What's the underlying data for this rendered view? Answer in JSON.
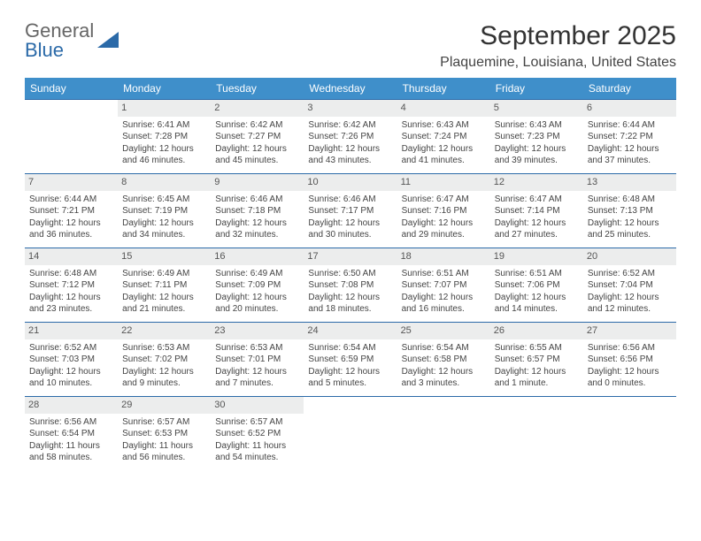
{
  "brand": {
    "part1": "General",
    "part2": "Blue"
  },
  "title": {
    "month": "September 2025",
    "location": "Plaquemine, Louisiana, United States"
  },
  "colors": {
    "header_bg": "#3f8fca",
    "row_border": "#2b6aa8",
    "daynum_bg": "#eceded",
    "text": "#444444",
    "brand_blue": "#2b6aa8"
  },
  "dayHeaders": [
    "Sunday",
    "Monday",
    "Tuesday",
    "Wednesday",
    "Thursday",
    "Friday",
    "Saturday"
  ],
  "weeks": [
    [
      null,
      {
        "n": "1",
        "sr": "Sunrise: 6:41 AM",
        "ss": "Sunset: 7:28 PM",
        "dl": "Daylight: 12 hours and 46 minutes."
      },
      {
        "n": "2",
        "sr": "Sunrise: 6:42 AM",
        "ss": "Sunset: 7:27 PM",
        "dl": "Daylight: 12 hours and 45 minutes."
      },
      {
        "n": "3",
        "sr": "Sunrise: 6:42 AM",
        "ss": "Sunset: 7:26 PM",
        "dl": "Daylight: 12 hours and 43 minutes."
      },
      {
        "n": "4",
        "sr": "Sunrise: 6:43 AM",
        "ss": "Sunset: 7:24 PM",
        "dl": "Daylight: 12 hours and 41 minutes."
      },
      {
        "n": "5",
        "sr": "Sunrise: 6:43 AM",
        "ss": "Sunset: 7:23 PM",
        "dl": "Daylight: 12 hours and 39 minutes."
      },
      {
        "n": "6",
        "sr": "Sunrise: 6:44 AM",
        "ss": "Sunset: 7:22 PM",
        "dl": "Daylight: 12 hours and 37 minutes."
      }
    ],
    [
      {
        "n": "7",
        "sr": "Sunrise: 6:44 AM",
        "ss": "Sunset: 7:21 PM",
        "dl": "Daylight: 12 hours and 36 minutes."
      },
      {
        "n": "8",
        "sr": "Sunrise: 6:45 AM",
        "ss": "Sunset: 7:19 PM",
        "dl": "Daylight: 12 hours and 34 minutes."
      },
      {
        "n": "9",
        "sr": "Sunrise: 6:46 AM",
        "ss": "Sunset: 7:18 PM",
        "dl": "Daylight: 12 hours and 32 minutes."
      },
      {
        "n": "10",
        "sr": "Sunrise: 6:46 AM",
        "ss": "Sunset: 7:17 PM",
        "dl": "Daylight: 12 hours and 30 minutes."
      },
      {
        "n": "11",
        "sr": "Sunrise: 6:47 AM",
        "ss": "Sunset: 7:16 PM",
        "dl": "Daylight: 12 hours and 29 minutes."
      },
      {
        "n": "12",
        "sr": "Sunrise: 6:47 AM",
        "ss": "Sunset: 7:14 PM",
        "dl": "Daylight: 12 hours and 27 minutes."
      },
      {
        "n": "13",
        "sr": "Sunrise: 6:48 AM",
        "ss": "Sunset: 7:13 PM",
        "dl": "Daylight: 12 hours and 25 minutes."
      }
    ],
    [
      {
        "n": "14",
        "sr": "Sunrise: 6:48 AM",
        "ss": "Sunset: 7:12 PM",
        "dl": "Daylight: 12 hours and 23 minutes."
      },
      {
        "n": "15",
        "sr": "Sunrise: 6:49 AM",
        "ss": "Sunset: 7:11 PM",
        "dl": "Daylight: 12 hours and 21 minutes."
      },
      {
        "n": "16",
        "sr": "Sunrise: 6:49 AM",
        "ss": "Sunset: 7:09 PM",
        "dl": "Daylight: 12 hours and 20 minutes."
      },
      {
        "n": "17",
        "sr": "Sunrise: 6:50 AM",
        "ss": "Sunset: 7:08 PM",
        "dl": "Daylight: 12 hours and 18 minutes."
      },
      {
        "n": "18",
        "sr": "Sunrise: 6:51 AM",
        "ss": "Sunset: 7:07 PM",
        "dl": "Daylight: 12 hours and 16 minutes."
      },
      {
        "n": "19",
        "sr": "Sunrise: 6:51 AM",
        "ss": "Sunset: 7:06 PM",
        "dl": "Daylight: 12 hours and 14 minutes."
      },
      {
        "n": "20",
        "sr": "Sunrise: 6:52 AM",
        "ss": "Sunset: 7:04 PM",
        "dl": "Daylight: 12 hours and 12 minutes."
      }
    ],
    [
      {
        "n": "21",
        "sr": "Sunrise: 6:52 AM",
        "ss": "Sunset: 7:03 PM",
        "dl": "Daylight: 12 hours and 10 minutes."
      },
      {
        "n": "22",
        "sr": "Sunrise: 6:53 AM",
        "ss": "Sunset: 7:02 PM",
        "dl": "Daylight: 12 hours and 9 minutes."
      },
      {
        "n": "23",
        "sr": "Sunrise: 6:53 AM",
        "ss": "Sunset: 7:01 PM",
        "dl": "Daylight: 12 hours and 7 minutes."
      },
      {
        "n": "24",
        "sr": "Sunrise: 6:54 AM",
        "ss": "Sunset: 6:59 PM",
        "dl": "Daylight: 12 hours and 5 minutes."
      },
      {
        "n": "25",
        "sr": "Sunrise: 6:54 AM",
        "ss": "Sunset: 6:58 PM",
        "dl": "Daylight: 12 hours and 3 minutes."
      },
      {
        "n": "26",
        "sr": "Sunrise: 6:55 AM",
        "ss": "Sunset: 6:57 PM",
        "dl": "Daylight: 12 hours and 1 minute."
      },
      {
        "n": "27",
        "sr": "Sunrise: 6:56 AM",
        "ss": "Sunset: 6:56 PM",
        "dl": "Daylight: 12 hours and 0 minutes."
      }
    ],
    [
      {
        "n": "28",
        "sr": "Sunrise: 6:56 AM",
        "ss": "Sunset: 6:54 PM",
        "dl": "Daylight: 11 hours and 58 minutes."
      },
      {
        "n": "29",
        "sr": "Sunrise: 6:57 AM",
        "ss": "Sunset: 6:53 PM",
        "dl": "Daylight: 11 hours and 56 minutes."
      },
      {
        "n": "30",
        "sr": "Sunrise: 6:57 AM",
        "ss": "Sunset: 6:52 PM",
        "dl": "Daylight: 11 hours and 54 minutes."
      },
      null,
      null,
      null,
      null
    ]
  ]
}
